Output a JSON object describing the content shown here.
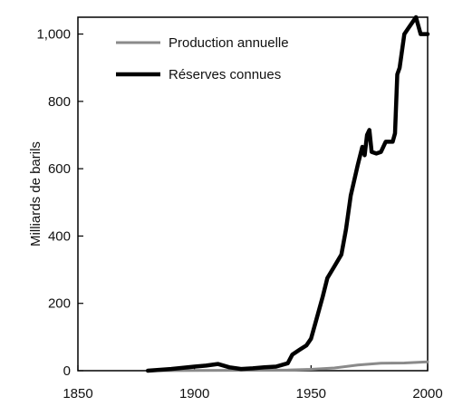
{
  "chart_data": {
    "type": "line",
    "title": "",
    "xlabel": "",
    "ylabel": "Milliards de barils",
    "xlim": [
      1850,
      2000
    ],
    "ylim": [
      0,
      1050
    ],
    "xticks": [
      1850,
      1900,
      1950,
      2000
    ],
    "yticks": [
      0,
      200,
      400,
      600,
      800,
      1000
    ],
    "xtick_labels": [
      "1850",
      "1900",
      "1950",
      "2000"
    ],
    "ytick_labels": [
      "0",
      "200",
      "400",
      "600",
      "800",
      "1,000"
    ],
    "grid": false,
    "legend_position": "top-left",
    "series": [
      {
        "name": "Production annuelle",
        "color": "#8a8a8a",
        "x": [
          1880,
          1900,
          1920,
          1940,
          1950,
          1960,
          1970,
          1980,
          1990,
          2000
        ],
        "y": [
          0,
          0.5,
          1,
          2,
          4,
          8,
          17,
          22,
          23,
          26
        ]
      },
      {
        "name": "Réserves connues",
        "color": "#000000",
        "x": [
          1880,
          1890,
          1900,
          1905,
          1910,
          1915,
          1920,
          1925,
          1930,
          1935,
          1940,
          1942,
          1945,
          1948,
          1950,
          1952,
          1955,
          1957,
          1960,
          1963,
          1965,
          1967,
          1970,
          1972,
          1973,
          1974,
          1975,
          1976,
          1978,
          1980,
          1982,
          1985,
          1986,
          1987,
          1988,
          1990,
          1992,
          1995,
          1997,
          2000
        ],
        "y": [
          0,
          5,
          12,
          15,
          20,
          10,
          5,
          7,
          10,
          12,
          22,
          48,
          62,
          75,
          95,
          145,
          220,
          275,
          310,
          345,
          420,
          520,
          610,
          665,
          640,
          700,
          715,
          650,
          645,
          650,
          680,
          680,
          705,
          880,
          900,
          1000,
          1020,
          1050,
          1000,
          1000
        ]
      }
    ]
  }
}
